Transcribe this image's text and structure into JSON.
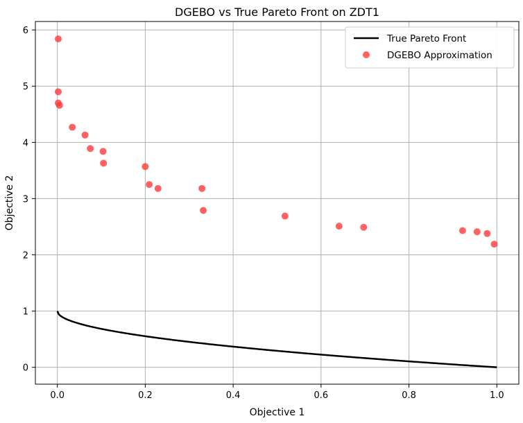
{
  "chart_data": {
    "type": "scatter",
    "title": "DGEBO vs True Pareto Front on ZDT1",
    "xlabel": "Objective 1",
    "ylabel": "Objective 2",
    "xlim": [
      -0.05,
      1.05
    ],
    "ylim": [
      -0.3,
      6.15
    ],
    "x_ticks": [
      0.0,
      0.2,
      0.4,
      0.6,
      0.8,
      1.0
    ],
    "x_tick_labels": [
      "0.0",
      "0.2",
      "0.4",
      "0.6",
      "0.8",
      "1.0"
    ],
    "y_ticks": [
      0,
      1,
      2,
      3,
      4,
      5,
      6
    ],
    "y_tick_labels": [
      "0",
      "1",
      "2",
      "3",
      "4",
      "5",
      "6"
    ],
    "grid": true,
    "legend_position": "top-right",
    "series": [
      {
        "name": "True Pareto Front",
        "kind": "line",
        "color": "#000000",
        "function": "1 - sqrt(x)",
        "x_range": [
          0,
          1
        ]
      },
      {
        "name": "DGEBO Approximation",
        "kind": "scatter",
        "color": "#ff3b3b",
        "points": [
          {
            "x": 0.002,
            "y": 5.84
          },
          {
            "x": 0.002,
            "y": 4.9
          },
          {
            "x": 0.002,
            "y": 4.7
          },
          {
            "x": 0.005,
            "y": 4.66
          },
          {
            "x": 0.034,
            "y": 4.27
          },
          {
            "x": 0.063,
            "y": 4.13
          },
          {
            "x": 0.075,
            "y": 3.89
          },
          {
            "x": 0.104,
            "y": 3.84
          },
          {
            "x": 0.105,
            "y": 3.63
          },
          {
            "x": 0.2,
            "y": 3.57
          },
          {
            "x": 0.209,
            "y": 3.25
          },
          {
            "x": 0.229,
            "y": 3.18
          },
          {
            "x": 0.329,
            "y": 3.18
          },
          {
            "x": 0.332,
            "y": 2.79
          },
          {
            "x": 0.518,
            "y": 2.69
          },
          {
            "x": 0.641,
            "y": 2.51
          },
          {
            "x": 0.697,
            "y": 2.49
          },
          {
            "x": 0.922,
            "y": 2.43
          },
          {
            "x": 0.955,
            "y": 2.41
          },
          {
            "x": 0.978,
            "y": 2.38
          },
          {
            "x": 0.994,
            "y": 2.19
          }
        ]
      }
    ]
  }
}
